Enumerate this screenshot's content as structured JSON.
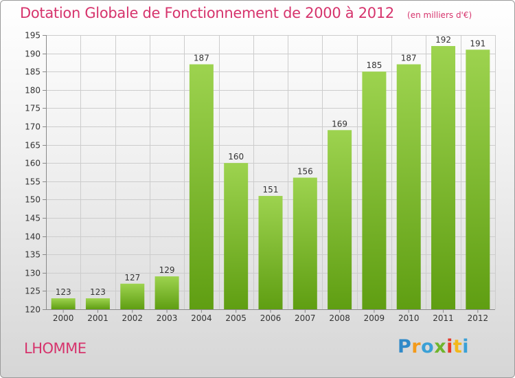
{
  "chart_data": {
    "type": "bar",
    "title": "Dotation Globale de Fonctionnement de 2000 à 2012",
    "unit": "(en milliers d'€)",
    "categories": [
      "2000",
      "2001",
      "2002",
      "2003",
      "2004",
      "2005",
      "2006",
      "2007",
      "2008",
      "2009",
      "2010",
      "2011",
      "2012"
    ],
    "values": [
      123,
      123,
      127,
      129,
      187,
      160,
      151,
      156,
      169,
      185,
      187,
      192,
      191
    ],
    "ylim": [
      120,
      195
    ],
    "yticks": [
      120,
      125,
      130,
      135,
      140,
      145,
      150,
      155,
      160,
      165,
      170,
      175,
      180,
      185,
      190,
      195
    ],
    "grid": true,
    "bar_color_light": "#9dd34f",
    "bar_color_dark": "#5f9e12"
  },
  "commune": "LHOMME",
  "brand": {
    "letters": [
      "P",
      "r",
      "o",
      "x",
      "i",
      "t",
      "i"
    ]
  },
  "colors": {
    "accent": "#d6336c",
    "grid": "#cccccc",
    "axis": "#888888"
  }
}
